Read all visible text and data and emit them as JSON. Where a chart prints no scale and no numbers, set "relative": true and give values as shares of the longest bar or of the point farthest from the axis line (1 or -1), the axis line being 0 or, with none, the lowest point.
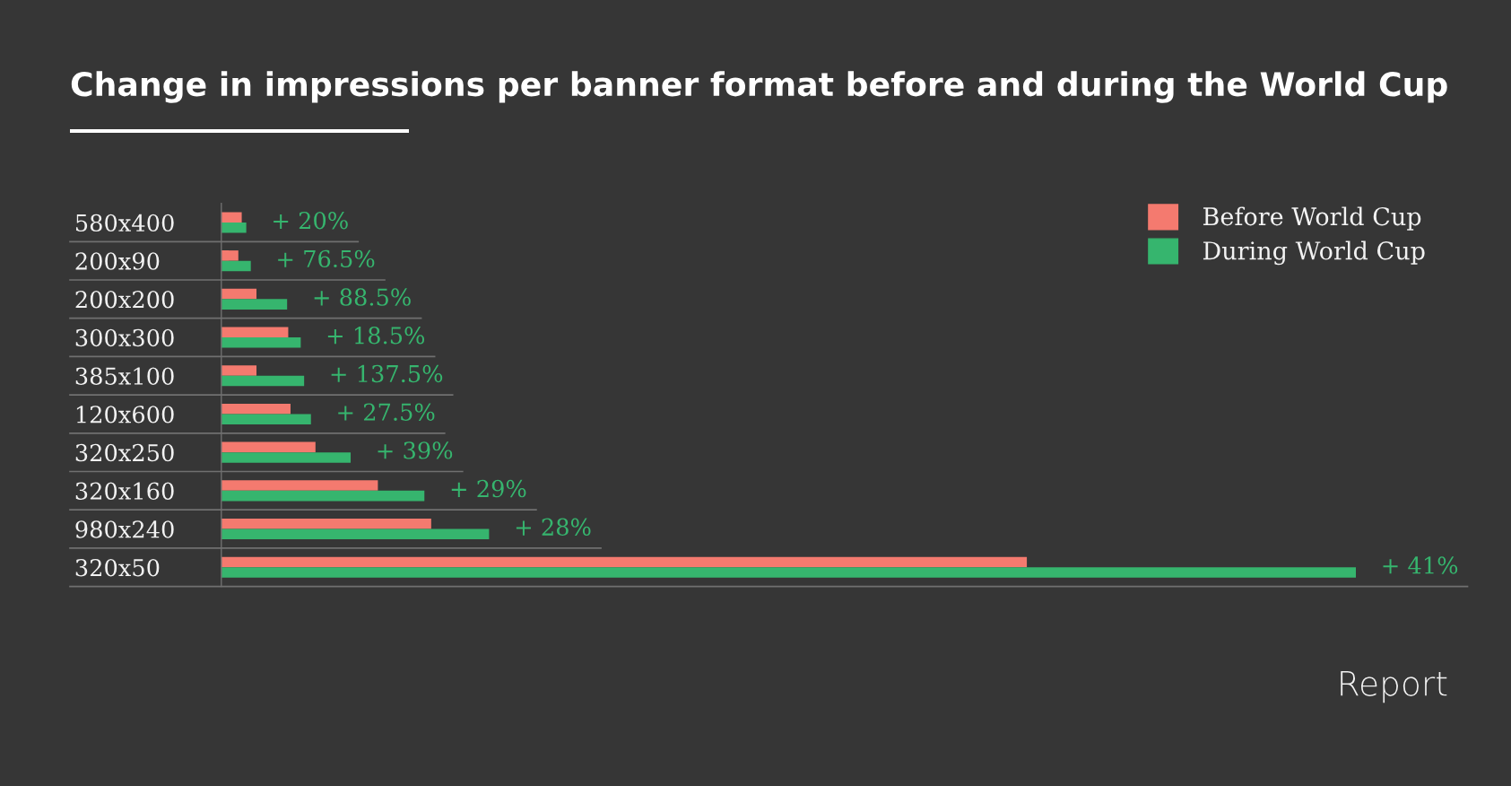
{
  "chart_data": {
    "type": "bar",
    "orientation": "horizontal",
    "relative": true,
    "title": "Change in impressions per banner format before and during the World Cup",
    "categories": [
      "580x400",
      "200x90",
      "200x200",
      "300x300",
      "385x100",
      "120x600",
      "320x250",
      "320x160",
      "980x240",
      "320x50"
    ],
    "series": [
      {
        "name": "Before World Cup",
        "color": "#f47a6f",
        "values": [
          0.018,
          0.015,
          0.031,
          0.059,
          0.031,
          0.061,
          0.083,
          0.138,
          0.185,
          0.71
        ]
      },
      {
        "name": "During World Cup",
        "color": "#36b56e",
        "values": [
          0.022,
          0.026,
          0.058,
          0.07,
          0.073,
          0.079,
          0.114,
          0.179,
          0.236,
          1
        ]
      }
    ],
    "legend": "top right",
    "annotations": [
      "+ 20%",
      "+ 76.5%",
      "+ 88.5%",
      "+ 18.5%",
      "+ 137.5%",
      "+ 27.5%",
      "+ 39%",
      "+ 29%",
      "+ 28%",
      "+ 41%",
      "Report"
    ]
  }
}
